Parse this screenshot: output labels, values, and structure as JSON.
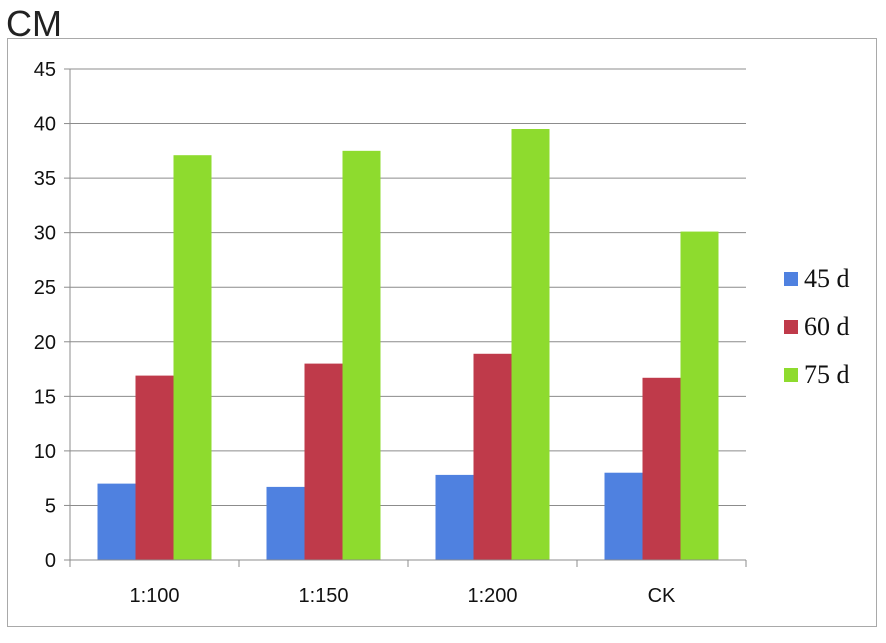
{
  "chart_data": {
    "type": "bar",
    "unit_label": "CM",
    "categories": [
      "1:100",
      "1:150",
      "1:200",
      "CK"
    ],
    "series": [
      {
        "name": "45 d",
        "color": "#4f81e0",
        "values": [
          7.0,
          6.7,
          7.8,
          8.0
        ]
      },
      {
        "name": "60 d",
        "color": "#bf3a4a",
        "values": [
          16.9,
          18.0,
          18.9,
          16.7
        ]
      },
      {
        "name": "75 d",
        "color": "#8edb2e",
        "values": [
          37.1,
          37.5,
          39.5,
          30.1
        ]
      }
    ],
    "ylim": [
      0,
      45
    ],
    "yticks": [
      0,
      5,
      10,
      15,
      20,
      25,
      30,
      35,
      40,
      45
    ],
    "grid": true,
    "legend_position": "right"
  }
}
